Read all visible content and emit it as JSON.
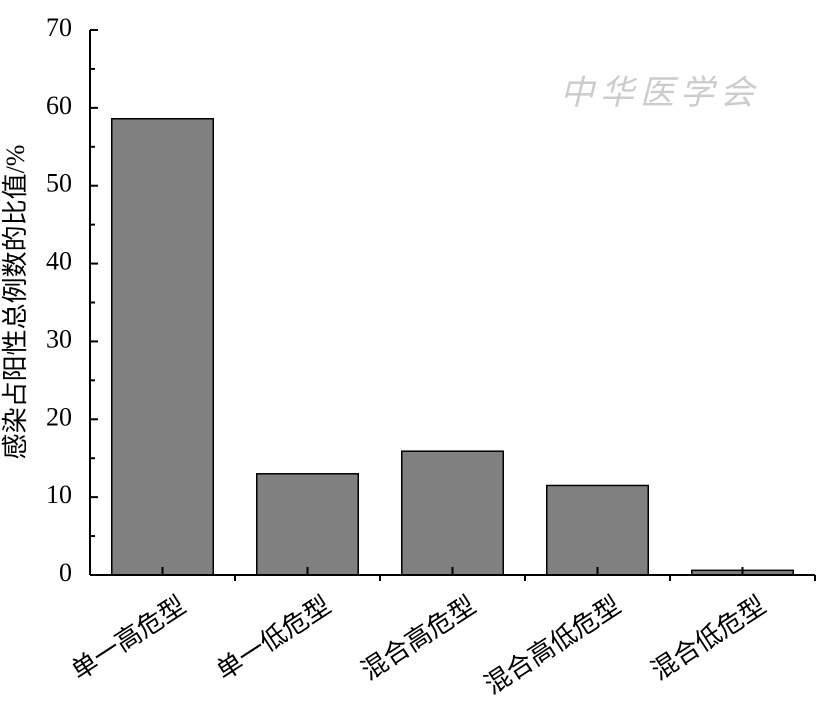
{
  "chart_data": {
    "type": "bar",
    "ylabel": "感染占阳性总例数的比值/%",
    "watermark": "中华医学会",
    "categories": [
      "单一高危型",
      "单一低危型",
      "混合高危型",
      "混合高低危型",
      "混合低危型"
    ],
    "values": [
      58.6,
      13,
      15.9,
      11.5,
      0.6
    ],
    "color": "#808080",
    "ylim": [
      0,
      70
    ],
    "yticks": [
      0,
      10,
      20,
      30,
      40,
      50,
      60,
      70
    ],
    "grid": false
  }
}
